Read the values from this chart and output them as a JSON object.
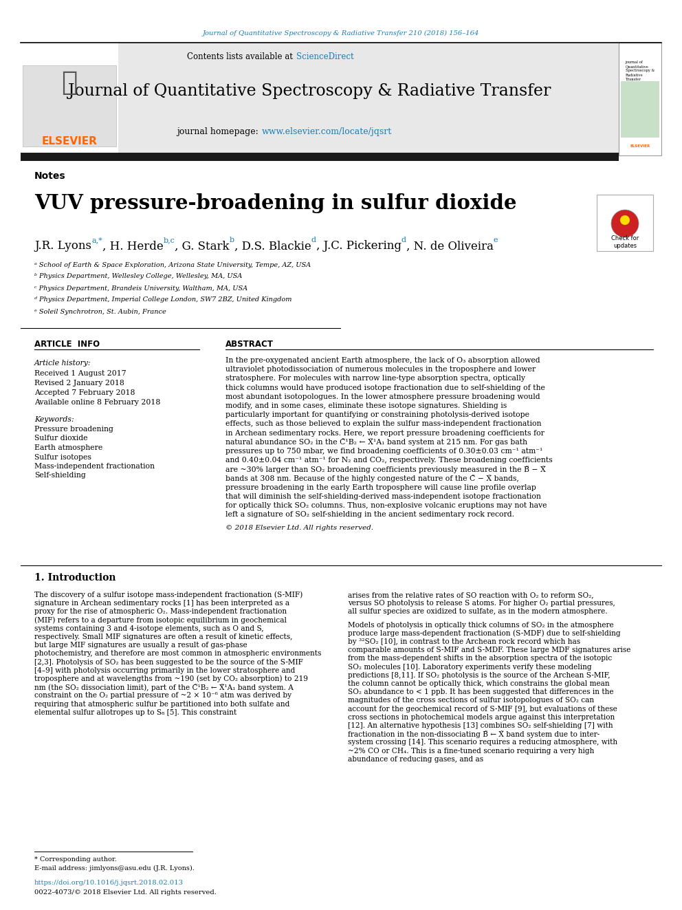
{
  "page_bg": "#ffffff",
  "top_journal_ref": "Journal of Quantitative Spectroscopy & Radiative Transfer 210 (2018) 156–164",
  "top_journal_ref_color": "#1a7db5",
  "header_bg": "#e8e8e8",
  "header_title": "Journal of Quantitative Spectroscopy & Radiative Transfer",
  "header_contents": "Contents lists available at ",
  "header_sciencedirect": "ScienceDirect",
  "header_link_color": "#1a7db5",
  "header_homepage": "journal homepage: ",
  "header_url": "www.elsevier.com/locate/jqsrt",
  "section_label": "Notes",
  "article_title": "VUV pressure-broadening in sulfur dioxide",
  "affil_a": "ᵃ School of Earth & Space Exploration, Arizona State University, Tempe, AZ, USA",
  "affil_b": "ᵇ Physics Department, Wellesley College, Wellesley, MA, USA",
  "affil_c": "ᶜ Physics Department, Brandeis University, Waltham, MA, USA",
  "affil_d": "ᵈ Physics Department, Imperial College London, SW7 2BZ, United Kingdom",
  "affil_e": "ᵉ Soleil Synchrotron, St. Aubin, France",
  "article_info_title": "ARTICLE  INFO",
  "abstract_title": "ABSTRACT",
  "article_history_label": "Article history:",
  "received": "Received 1 August 2017",
  "revised": "Revised 2 January 2018",
  "accepted": "Accepted 7 February 2018",
  "available": "Available online 8 February 2018",
  "keywords_label": "Keywords:",
  "keywords": [
    "Pressure broadening",
    "Sulfur dioxide",
    "Earth atmosphere",
    "Sulfur isotopes",
    "Mass-independent fractionation",
    "Self-shielding"
  ],
  "abstract_text": "In the pre-oxygenated ancient Earth atmosphere, the lack of O₃ absorption allowed ultraviolet photodissociation of numerous molecules in the troposphere and lower stratosphere. For molecules with narrow line-type absorption spectra, optically thick columns would have produced isotope fractionation due to self-shielding of the most abundant isotopologues. In the lower atmosphere pressure broadening would modify, and in some cases, eliminate these isotope signatures. Shielding is particularly important for quantifying or constraining photolysis-derived isotope effects, such as those believed to explain the sulfur mass-independent fractionation in Archean sedimentary rocks. Here, we report pressure broadening coefficients for natural abundance SO₂ in the C̃¹B₂ ← X̃¹A₁ band system at 215 nm. For gas bath pressures up to 750 mbar, we find broadening coefficients of 0.30±0.03 cm⁻¹ atm⁻¹ and 0.40±0.04 cm⁻¹ atm⁻¹ for N₂ and CO₂, respectively. These broadening coefficients are ~30% larger than SO₂ broadening coefficients previously measured in the B̃ − X̃ bands at 308 nm. Because of the highly congested nature of the C̃ − X̃ bands, pressure broadening in the early Earth troposphere will cause line profile overlap that will diminish the self-shielding-derived mass-independent isotope fractionation for optically thick SO₂ columns. Thus, non-explosive volcanic eruptions may not have left a signature of SO₂ self-shielding in the ancient sedimentary rock record.",
  "copyright": "© 2018 Elsevier Ltd. All rights reserved.",
  "intro_title": "1. Introduction",
  "intro_col1": "The discovery of a sulfur isotope mass-independent fractionation (S-MIF) signature in Archean sedimentary rocks [1] has been interpreted as a proxy for the rise of atmospheric O₂. Mass-independent fractionation (MIF) refers to a departure from isotopic equilibrium in geochemical systems containing 3 and 4-isotope elements, such as O and S, respectively. Small MIF signatures are often a result of kinetic effects, but large MIF signatures are usually a result of gas-phase photochemistry, and therefore are most common in atmospheric environments [2,3]. Photolysis of SO₂ has been suggested to be the source of the S-MIF [4–9] with photolysis occurring primarily in the lower stratosphere and troposphere and at wavelengths from ~190 (set by CO₂ absorption) to 219 nm (the SO₂ dissociation limit), part of the C̃¹B₂ ← X̃¹A₁ band system. A constraint on the O₂ partial pressure of ~2 × 10⁻⁶ atm was derived by requiring that atmospheric sulfur be partitioned into both sulfate and elemental sulfur allotropes up to S₈ [5]. This constraint",
  "intro_col2": "arises from the relative rates of SO reaction with O₂ to reform SO₂, versus SO photolysis to release S atoms. For higher O₂ partial pressures, all sulfur species are oxidized to sulfate, as in the modern atmosphere.\n\nModels of photolysis in optically thick columns of SO₂ in the atmosphere produce large mass-dependent fractionation (S-MDF) due to self-shielding by ³²SO₂ [10], in contrast to the Archean rock record which has comparable amounts of S-MIF and S-MDF. These large MDF signatures arise from the mass-dependent shifts in the absorption spectra of the isotopic SO₂ molecules [10]. Laboratory experiments verify these modeling predictions [8,11]. If SO₂ photolysis is the source of the Archean S-MIF, the column cannot be optically thick, which constrains the global mean SO₂ abundance to < 1 ppb. It has been suggested that differences in the magnitudes of the cross sections of sulfur isotopologues of SO₂ can account for the geochemical record of S-MIF [9], but evaluations of these cross sections in photochemical models argue against this interpretation [12]. An alternative hypothesis [13] combines SO₂ self-shielding [7] with fractionation in the non-dissociating B̃ ← X̃ band system due to inter-system crossing [14]. This scenario requires a reducing atmosphere, with ~2% CO or CH₄. This is a fine-tuned scenario requiring a very high abundance of reducing gases, and as",
  "footnote_star": "* Corresponding author.",
  "footnote_email": "E-mail address: jimlyons@asu.edu (J.R. Lyons).",
  "doi_text": "https://doi.org/10.1016/j.jqsrt.2018.02.013",
  "issn_text": "0022-4073/© 2018 Elsevier Ltd. All rights reserved.",
  "black_bar_color": "#1a1a1a",
  "elsevier_orange": "#FF6600",
  "link_color": "#1a7db5"
}
